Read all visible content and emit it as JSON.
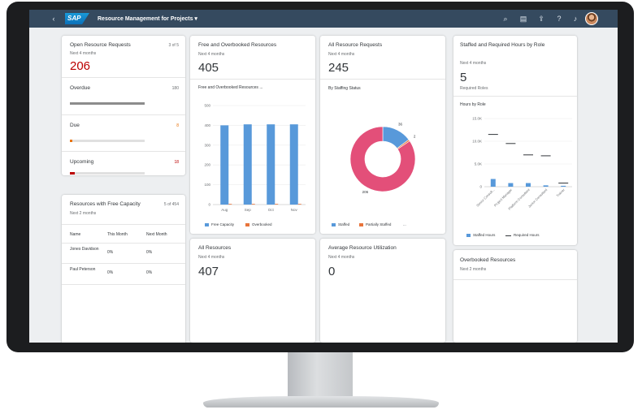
{
  "shell": {
    "logo": "SAP",
    "app_title": "Resource Management for Projects ▾"
  },
  "open_requests": {
    "title": "Open Resource Requests",
    "count": "3 of 5",
    "subtitle": "Next 4 months",
    "kpi": "206",
    "rows": [
      {
        "label": "Overdue",
        "value": "180",
        "fraction": 1.0,
        "color": "#8c8c8c"
      },
      {
        "label": "Due",
        "value": "8",
        "fraction": 0.02,
        "color": "#e9730c"
      },
      {
        "label": "Upcoming",
        "value": "18",
        "fraction": 0.06,
        "color": "#bb0000"
      }
    ]
  },
  "free_capacity": {
    "title": "Resources with Free Capacity",
    "count": "5 of 454",
    "subtitle": "Next 2 months",
    "columns": [
      "Name",
      "This Month",
      "Next Month"
    ],
    "rows": [
      [
        "Jones Davidson",
        "0%",
        "0%"
      ],
      [
        "Paul Peterson",
        "0%",
        "0%"
      ]
    ]
  },
  "free_overbooked": {
    "title": "Free and Overbooked Resources",
    "subtitle": "Next 4 months",
    "kpi": "405",
    "chart_title": "Free and Overbooked Resources ...",
    "legend": [
      "Free Capacity",
      "Overbooked"
    ]
  },
  "all_requests": {
    "title": "All Resource Requests",
    "subtitle": "Next 4 months",
    "kpi": "245",
    "chart_title": "By Staffing Status",
    "legend": [
      "Staffed",
      "Partially Staffed",
      "..."
    ]
  },
  "staffed_required": {
    "title": "Staffed and Required Hours by Role",
    "subtitle": "Next 4 months",
    "kpi": "5",
    "kpi_label": "Required Roles",
    "chart_title": "Hours by Role",
    "legend": [
      "Staffed Hours",
      "Required Hours"
    ]
  },
  "all_resources": {
    "title": "All Resources",
    "subtitle": "Next 4 months",
    "kpi": "407"
  },
  "utilization": {
    "title": "Average Resource Utilization",
    "subtitle": "Next 4 months",
    "kpi": "0"
  },
  "overbooked": {
    "title": "Overbooked Resources",
    "subtitle": "Next 2 months"
  },
  "chart_data": [
    {
      "type": "bar",
      "categories": [
        "Aug",
        "Sep",
        "Oct",
        "Nov"
      ],
      "ylim": [
        0,
        500
      ],
      "yticks": [
        "500",
        "400",
        "300",
        "200",
        "100",
        "0"
      ],
      "series": [
        {
          "name": "Free Capacity",
          "values": [
            400,
            405,
            405,
            405
          ],
          "color": "#5899da"
        },
        {
          "name": "Overbooked",
          "values": [
            0,
            0,
            0,
            0
          ],
          "color": "#e8743b"
        }
      ]
    },
    {
      "type": "pie",
      "donut": true,
      "labels": [
        "Staffed",
        "Partially Staffed",
        "..."
      ],
      "values": [
        36,
        2,
        206
      ],
      "colors": [
        "#5899da",
        "#e8743b",
        "#e34f79"
      ],
      "value_labels": [
        "36",
        "2",
        "206"
      ]
    },
    {
      "type": "bar",
      "categories": [
        "Senior Consult...",
        "Project Manager",
        "Platform Consultant",
        "Junior Consultant",
        "Trainer"
      ],
      "ylim": [
        0,
        15000
      ],
      "yticks": [
        "15.0K",
        "10.0K",
        "5.0K",
        "0"
      ],
      "series": [
        {
          "name": "Staffed Hours",
          "values": [
            1700,
            800,
            800,
            300,
            200
          ],
          "color": "#5899da"
        },
        {
          "name": "Required Hours",
          "values": [
            11500,
            9500,
            7000,
            6800,
            800
          ],
          "color": "#32363a"
        }
      ]
    }
  ]
}
